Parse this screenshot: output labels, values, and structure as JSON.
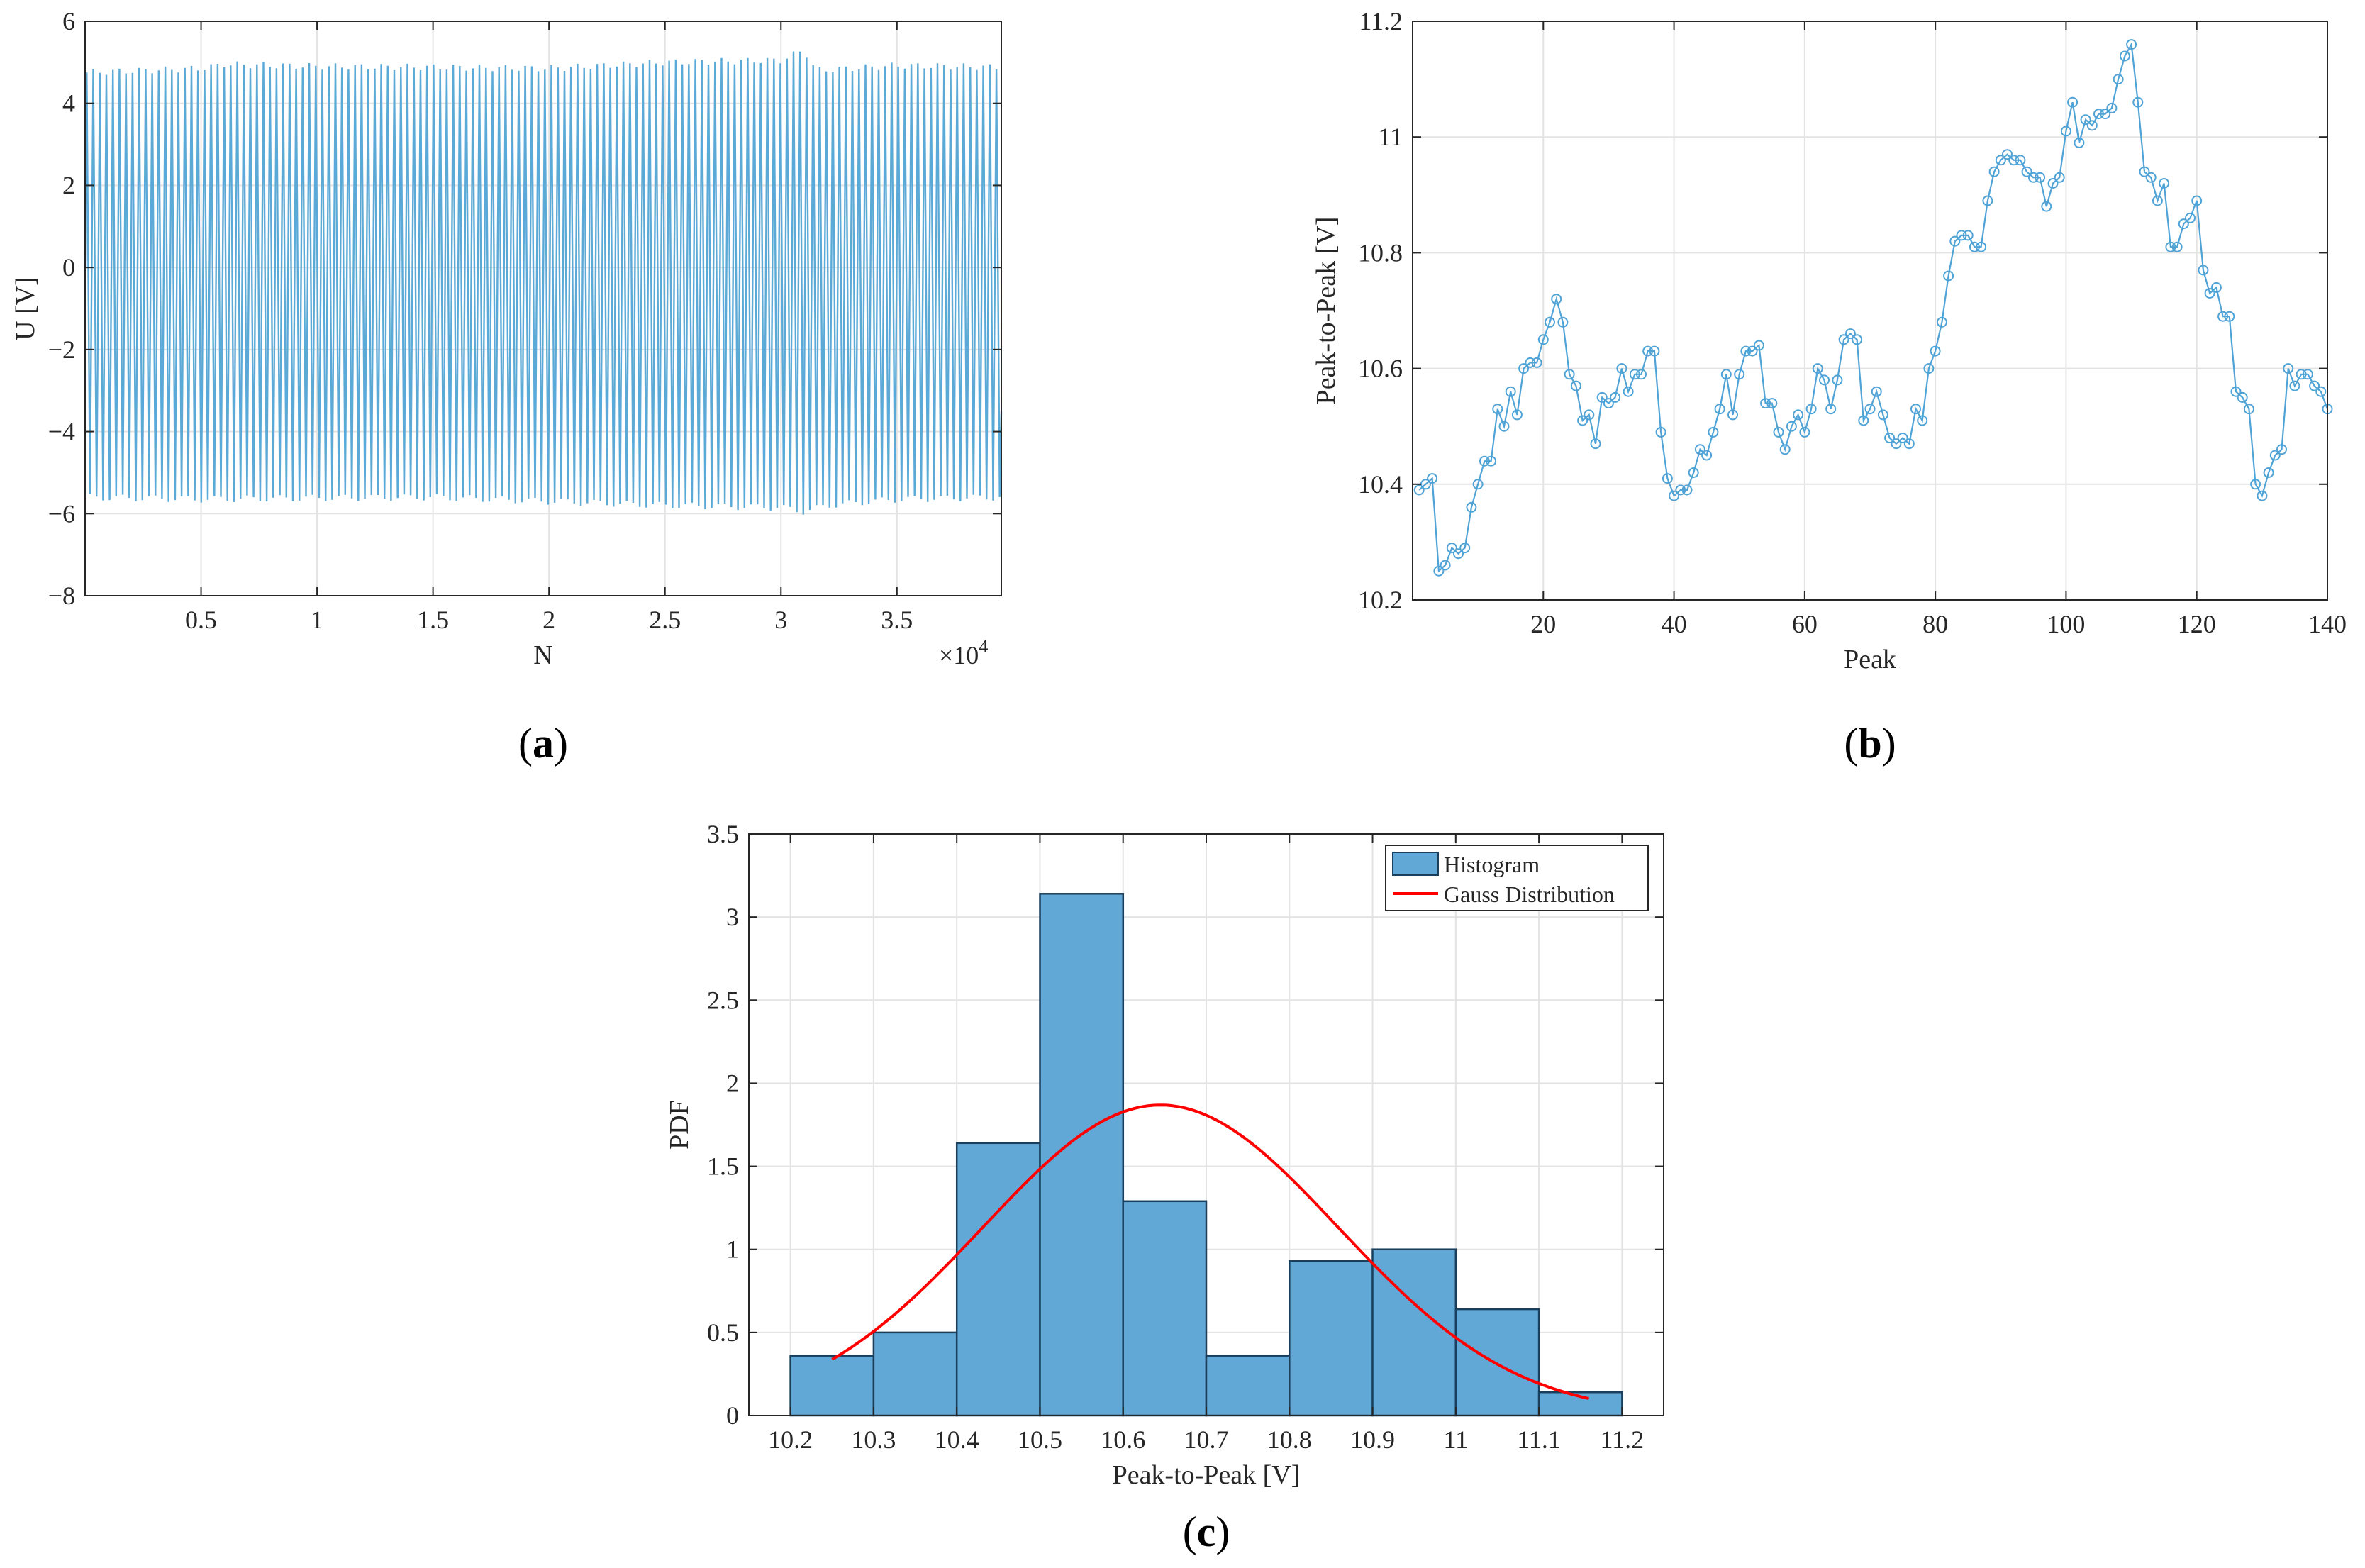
{
  "colors": {
    "signal": "#5aa9d6",
    "marker": "#4fa3d6",
    "bar_fill": "#62a8d6",
    "bar_edge": "#1a3f5c",
    "gauss": "#ff0000",
    "grid": "#e3e3e3",
    "axis": "#262626"
  },
  "chart_data": [
    {
      "id": "a",
      "panel_label": "(a)",
      "panel_letter": "a",
      "type": "line",
      "description": "dense oscillating signal",
      "xlabel": "N",
      "ylabel": "U [V]",
      "xlim": [
        0,
        39500
      ],
      "ylim": [
        -8,
        6
      ],
      "x_exponent_label": "×10",
      "x_exponent_power": "4",
      "x_ticks": [
        0.5,
        1,
        1.5,
        2,
        2.5,
        3,
        3.5
      ],
      "x_tick_labels": [
        "0.5",
        "1",
        "1.5",
        "2",
        "2.5",
        "3",
        "3.5"
      ],
      "y_ticks": [
        -8,
        -6,
        -4,
        -2,
        0,
        2,
        4,
        6
      ],
      "y_tick_labels": [
        "−8",
        "−6",
        "−4",
        "−2",
        "0",
        "2",
        "4",
        "6"
      ],
      "cycles": 140,
      "upper_envelope_x": [
        0,
        5000,
        6000,
        10000,
        15000,
        20000,
        25000,
        30000,
        31000,
        31500,
        35000,
        39500
      ],
      "upper_envelope_y": [
        4.75,
        4.85,
        4.95,
        4.9,
        4.88,
        4.85,
        5.0,
        5.05,
        5.3,
        4.8,
        4.92,
        4.88
      ],
      "lower_envelope_x": [
        0,
        5000,
        10000,
        15000,
        20000,
        25000,
        30000,
        31000,
        32000,
        35000,
        39500
      ],
      "lower_envelope_y": [
        -5.6,
        -5.65,
        -5.62,
        -5.6,
        -5.7,
        -5.8,
        -5.85,
        -5.95,
        -5.8,
        -5.65,
        -5.6
      ]
    },
    {
      "id": "b",
      "panel_label": "(b)",
      "panel_letter": "b",
      "type": "line",
      "marker": "circle",
      "xlabel": "Peak",
      "ylabel": "Peak-to-Peak [V]",
      "xlim": [
        0,
        140
      ],
      "ylim": [
        10.2,
        11.2
      ],
      "x_ticks": [
        20,
        40,
        60,
        80,
        100,
        120,
        140
      ],
      "x_tick_labels": [
        "20",
        "40",
        "60",
        "80",
        "100",
        "120",
        "140"
      ],
      "y_ticks": [
        10.2,
        10.4,
        10.6,
        10.8,
        11,
        11.2
      ],
      "y_tick_labels": [
        "10.2",
        "10.4",
        "10.6",
        "10.8",
        "11",
        "11.2"
      ],
      "x": [
        1,
        2,
        3,
        4,
        5,
        6,
        7,
        8,
        9,
        10,
        11,
        12,
        13,
        14,
        15,
        16,
        17,
        18,
        19,
        20,
        21,
        22,
        23,
        24,
        25,
        26,
        27,
        28,
        29,
        30,
        31,
        32,
        33,
        34,
        35,
        36,
        37,
        38,
        39,
        40,
        41,
        42,
        43,
        44,
        45,
        46,
        47,
        48,
        49,
        50,
        51,
        52,
        53,
        54,
        55,
        56,
        57,
        58,
        59,
        60,
        61,
        62,
        63,
        64,
        65,
        66,
        67,
        68,
        69,
        70,
        71,
        72,
        73,
        74,
        75,
        76,
        77,
        78,
        79,
        80,
        81,
        82,
        83,
        84,
        85,
        86,
        87,
        88,
        89,
        90,
        91,
        92,
        93,
        94,
        95,
        96,
        97,
        98,
        99,
        100,
        101,
        102,
        103,
        104,
        105,
        106,
        107,
        108,
        109,
        110,
        111,
        112,
        113,
        114,
        115,
        116,
        117,
        118,
        119,
        120,
        121,
        122,
        123,
        124,
        125,
        126,
        127,
        128,
        129,
        130,
        131,
        132,
        133,
        134,
        135,
        136,
        137,
        138,
        139,
        140
      ],
      "y": [
        10.39,
        10.4,
        10.41,
        10.25,
        10.26,
        10.29,
        10.28,
        10.29,
        10.36,
        10.4,
        10.44,
        10.44,
        10.53,
        10.5,
        10.56,
        10.52,
        10.6,
        10.61,
        10.61,
        10.65,
        10.68,
        10.72,
        10.68,
        10.59,
        10.57,
        10.51,
        10.52,
        10.47,
        10.55,
        10.54,
        10.55,
        10.6,
        10.56,
        10.59,
        10.59,
        10.63,
        10.63,
        10.49,
        10.41,
        10.38,
        10.39,
        10.39,
        10.42,
        10.46,
        10.45,
        10.49,
        10.53,
        10.59,
        10.52,
        10.59,
        10.63,
        10.63,
        10.64,
        10.54,
        10.54,
        10.49,
        10.46,
        10.5,
        10.52,
        10.49,
        10.53,
        10.6,
        10.58,
        10.53,
        10.58,
        10.65,
        10.66,
        10.65,
        10.51,
        10.53,
        10.56,
        10.52,
        10.48,
        10.47,
        10.48,
        10.47,
        10.53,
        10.51,
        10.6,
        10.63,
        10.68,
        10.76,
        10.82,
        10.83,
        10.83,
        10.81,
        10.81,
        10.89,
        10.94,
        10.96,
        10.97,
        10.96,
        10.96,
        10.94,
        10.93,
        10.93,
        10.88,
        10.92,
        10.93,
        11.01,
        11.06,
        10.99,
        11.03,
        11.02,
        11.04,
        11.04,
        11.05,
        11.1,
        11.14,
        11.16,
        11.06,
        10.94,
        10.93,
        10.89,
        10.92,
        10.81,
        10.81,
        10.85,
        10.86,
        10.89,
        10.77,
        10.73,
        10.74,
        10.69,
        10.69,
        10.56,
        10.55,
        10.53,
        10.4,
        10.38,
        10.42,
        10.45,
        10.46,
        10.6,
        10.57,
        10.59,
        10.59,
        10.57,
        10.56,
        10.53
      ]
    },
    {
      "id": "c",
      "panel_label": "(c)",
      "panel_letter": "c",
      "type": "bar",
      "subtype": "histogram",
      "xlabel": "Peak-to-Peak [V]",
      "ylabel": "PDF",
      "xlim": [
        10.15,
        11.25
      ],
      "ylim": [
        0,
        3.5
      ],
      "x_ticks": [
        10.2,
        10.3,
        10.4,
        10.5,
        10.6,
        10.7,
        10.8,
        10.9,
        11,
        11.1,
        11.2
      ],
      "x_tick_labels": [
        "10.2",
        "10.3",
        "10.4",
        "10.5",
        "10.6",
        "10.7",
        "10.8",
        "10.9",
        "11",
        "11.1",
        "11.2"
      ],
      "y_ticks": [
        0,
        0.5,
        1,
        1.5,
        2,
        2.5,
        3,
        3.5
      ],
      "y_tick_labels": [
        "0",
        "0.5",
        "1",
        "1.5",
        "2",
        "2.5",
        "3",
        "3.5"
      ],
      "bin_edges": [
        10.2,
        10.3,
        10.4,
        10.5,
        10.6,
        10.7,
        10.8,
        10.9,
        11.0,
        11.1,
        11.2
      ],
      "values": [
        0.36,
        0.5,
        1.64,
        3.14,
        1.29,
        0.36,
        0.93,
        1.0,
        0.64,
        0.14
      ],
      "gauss": {
        "mean": 10.645,
        "std": 0.2135,
        "x_range": [
          10.25,
          11.16
        ]
      },
      "legend": {
        "histogram": "Histogram",
        "gauss": "Gauss Distribution",
        "position": "top-right"
      }
    }
  ]
}
